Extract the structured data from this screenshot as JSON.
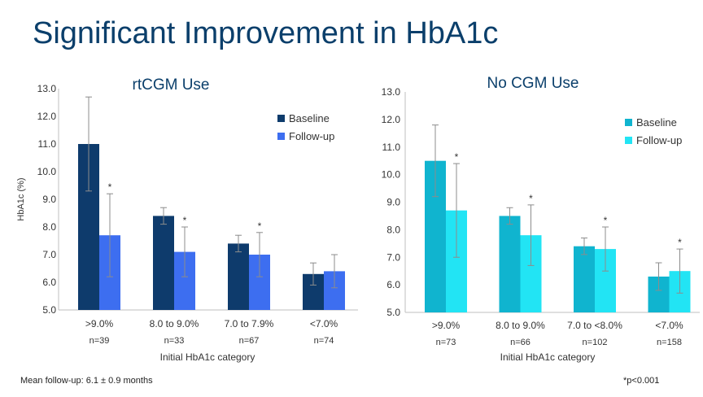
{
  "slide": {
    "title": "Significant Improvement in HbA1c",
    "footnote_left": "Mean follow-up: 6.1 ± 0.9 months",
    "footnote_right": "*p<0.001"
  },
  "chart_data": [
    {
      "type": "bar",
      "title": "rtCGM Use",
      "ylabel": "HbA1c (%)",
      "xlabel": "Initial HbA1c category",
      "ylim": [
        5.0,
        13.0
      ],
      "ytick_step": 1.0,
      "categories": [
        ">9.0%",
        "8.0 to 9.0%",
        "7.0 to 7.9%",
        "<7.0%"
      ],
      "n_labels": [
        "n=39",
        "n=33",
        "n=67",
        "n=74"
      ],
      "series": [
        {
          "name": "Baseline",
          "color": "#0e3b6c",
          "values": [
            11.0,
            8.4,
            7.4,
            6.3
          ],
          "err": [
            1.7,
            0.3,
            0.3,
            0.4
          ]
        },
        {
          "name": "Follow-up",
          "color": "#3d6ef0",
          "values": [
            7.7,
            7.1,
            7.0,
            6.4
          ],
          "err": [
            1.5,
            0.9,
            0.8,
            0.6
          ]
        }
      ],
      "significance": [
        "*",
        "*",
        "*",
        ""
      ],
      "legend": "top-right"
    },
    {
      "type": "bar",
      "title": "No CGM Use",
      "ylabel": "",
      "xlabel": "Initial HbA1c category",
      "ylim": [
        5.0,
        13.0
      ],
      "ytick_step": 1.0,
      "categories": [
        ">9.0%",
        "8.0 to 9.0%",
        "7.0 to <8.0%",
        "<7.0%"
      ],
      "n_labels": [
        "n=73",
        "n=66",
        "n=102",
        "n=158"
      ],
      "series": [
        {
          "name": "Baseline",
          "color": "#10b4cf",
          "values": [
            10.5,
            8.5,
            7.4,
            6.3
          ],
          "err": [
            1.3,
            0.3,
            0.3,
            0.5
          ]
        },
        {
          "name": "Follow-up",
          "color": "#22e4f4",
          "values": [
            8.7,
            7.8,
            7.3,
            6.5
          ],
          "err": [
            1.7,
            1.1,
            0.8,
            0.8
          ]
        }
      ],
      "significance": [
        "*",
        "*",
        "*",
        "*"
      ],
      "legend": "top-right"
    }
  ]
}
